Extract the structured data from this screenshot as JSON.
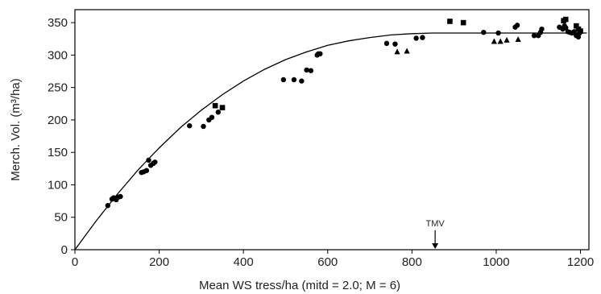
{
  "chart_data": {
    "type": "scatter",
    "xlabel": "Mean WS tress/ha (mitd = 2.0; M = 6)",
    "ylabel": "Merch. Vol. (m³/ha)",
    "xlim": [
      0,
      1220
    ],
    "ylim": [
      0,
      370
    ],
    "xticks": [
      0,
      200,
      400,
      600,
      800,
      1000,
      1200
    ],
    "yticks": [
      0,
      50,
      100,
      150,
      200,
      250,
      300,
      350
    ],
    "grid": false,
    "series": [
      {
        "marker": "circle",
        "points": [
          [
            78,
            68
          ],
          [
            88,
            78
          ],
          [
            92,
            80
          ],
          [
            98,
            77
          ],
          [
            103,
            81
          ],
          [
            108,
            82
          ],
          [
            158,
            119
          ],
          [
            163,
            120
          ],
          [
            170,
            122
          ],
          [
            175,
            138
          ],
          [
            180,
            130
          ],
          [
            186,
            133
          ],
          [
            190,
            135
          ],
          [
            272,
            191
          ],
          [
            305,
            190
          ],
          [
            318,
            200
          ],
          [
            325,
            204
          ],
          [
            340,
            212
          ],
          [
            495,
            262
          ],
          [
            520,
            262
          ],
          [
            538,
            260
          ],
          [
            550,
            277
          ],
          [
            560,
            276
          ],
          [
            575,
            300
          ],
          [
            578,
            302
          ],
          [
            582,
            302
          ],
          [
            740,
            318
          ],
          [
            760,
            317
          ],
          [
            810,
            326
          ],
          [
            825,
            327
          ],
          [
            970,
            335
          ],
          [
            1005,
            334
          ],
          [
            1045,
            343
          ],
          [
            1050,
            346
          ],
          [
            1090,
            330
          ],
          [
            1100,
            330
          ],
          [
            1105,
            335
          ],
          [
            1108,
            340
          ],
          [
            1150,
            343
          ],
          [
            1158,
            340
          ],
          [
            1162,
            345
          ],
          [
            1165,
            342
          ],
          [
            1170,
            336
          ],
          [
            1175,
            335
          ],
          [
            1180,
            334
          ],
          [
            1185,
            336
          ],
          [
            1190,
            330
          ],
          [
            1195,
            328
          ],
          [
            1198,
            334
          ]
        ]
      },
      {
        "marker": "square",
        "points": [
          [
            333,
            222
          ],
          [
            350,
            219
          ],
          [
            890,
            352
          ],
          [
            922,
            350
          ],
          [
            1160,
            353
          ],
          [
            1165,
            355
          ],
          [
            1190,
            345
          ],
          [
            1195,
            340
          ],
          [
            1200,
            337
          ]
        ]
      },
      {
        "marker": "triangle",
        "points": [
          [
            765,
            305
          ],
          [
            788,
            306
          ],
          [
            995,
            321
          ],
          [
            1010,
            321
          ],
          [
            1025,
            323
          ],
          [
            1052,
            324
          ]
        ]
      }
    ],
    "trend_curve": [
      [
        0,
        0
      ],
      [
        50,
        44
      ],
      [
        100,
        85
      ],
      [
        150,
        123
      ],
      [
        200,
        157
      ],
      [
        250,
        188
      ],
      [
        300,
        215
      ],
      [
        350,
        239
      ],
      [
        400,
        260
      ],
      [
        450,
        278
      ],
      [
        500,
        293
      ],
      [
        550,
        305
      ],
      [
        600,
        315
      ],
      [
        650,
        322
      ],
      [
        700,
        327
      ],
      [
        750,
        331
      ],
      [
        800,
        333
      ],
      [
        850,
        334
      ],
      [
        900,
        334
      ],
      [
        950,
        334
      ],
      [
        1000,
        334
      ],
      [
        1050,
        334
      ],
      [
        1100,
        334
      ],
      [
        1150,
        334
      ],
      [
        1200,
        334
      ],
      [
        1215,
        334
      ]
    ],
    "annotations": [
      {
        "text": "TMV",
        "x": 855,
        "y_start": 30,
        "y_end": 0
      }
    ]
  }
}
